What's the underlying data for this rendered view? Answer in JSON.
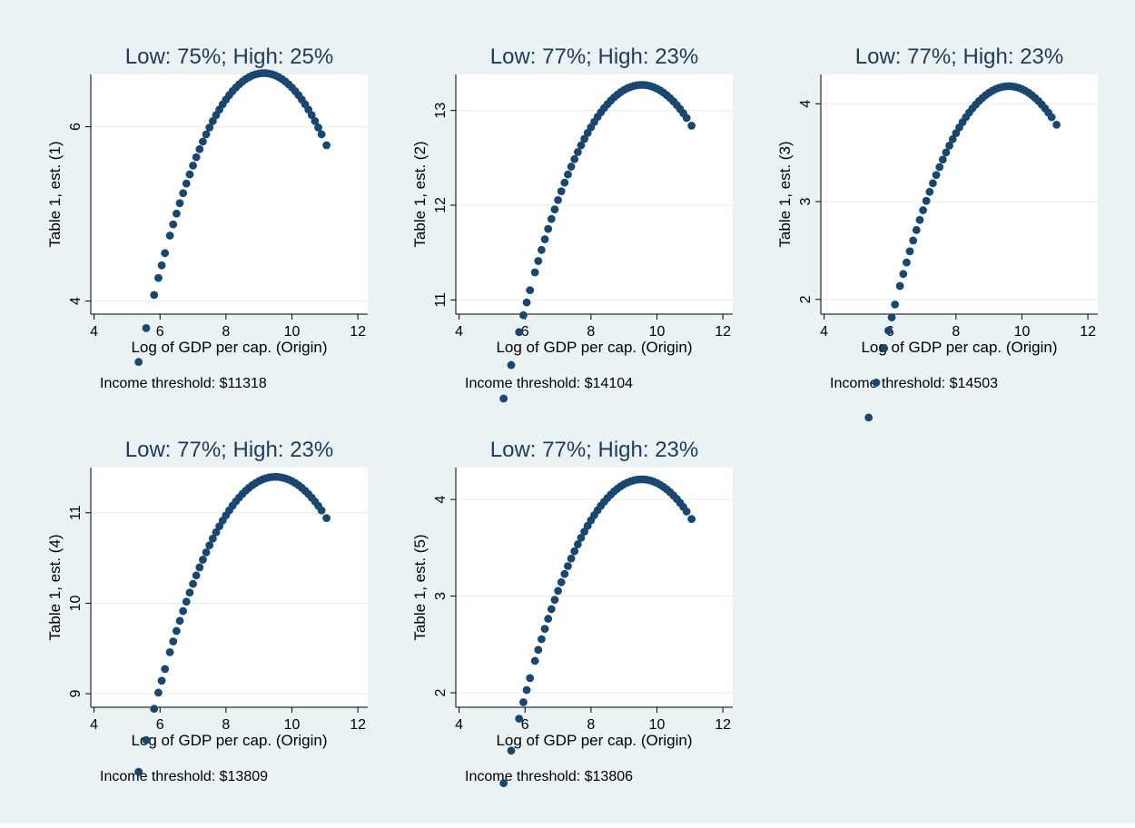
{
  "style": {
    "background": "#eaf2f3",
    "plot_background": "#ffffff",
    "marker_color": "#1a476f",
    "title_color": "#1e3a5f",
    "grid_color": "#e6ecee"
  },
  "chart_data": [
    {
      "type": "scatter",
      "title": "Low: 75%; High: 25%",
      "xlabel": "Log of GDP per cap. (Origin)",
      "ylabel": "Table 1, est. (1)",
      "note": "Income threshold: $11318",
      "xlim": [
        3.9,
        12.3
      ],
      "xticks": [
        4,
        6,
        8,
        10,
        12
      ],
      "ylim": [
        3.85,
        6.6
      ],
      "yticks": [
        4,
        6
      ],
      "grid": true,
      "curve": {
        "a": -0.2295,
        "b": 4.2,
        "c": -12.6
      },
      "x": [
        5.35,
        5.58,
        5.82,
        5.95,
        6.05,
        6.15,
        6.3,
        6.4,
        6.5,
        6.6,
        6.7,
        6.8,
        6.9,
        7.0,
        7.1,
        7.2,
        7.3,
        7.4,
        7.5,
        7.6,
        7.7,
        7.8,
        7.9,
        8.0,
        8.1,
        8.2,
        8.3,
        8.4,
        8.5,
        8.6,
        8.7,
        8.8,
        8.9,
        9.0,
        9.1,
        9.2,
        9.3,
        9.4,
        9.5,
        9.6,
        9.7,
        9.8,
        9.9,
        10.0,
        10.1,
        10.2,
        10.3,
        10.4,
        10.5,
        10.6,
        10.7,
        10.8,
        10.9,
        11.05
      ]
    },
    {
      "type": "scatter",
      "title": "Low: 77%; High: 23%",
      "xlabel": "Log of GDP per cap. (Origin)",
      "ylabel": "Table 1, est. (2)",
      "note": "Income threshold: $14104",
      "xlim": [
        3.9,
        12.3
      ],
      "xticks": [
        4,
        6,
        8,
        10,
        12
      ],
      "ylim": [
        10.85,
        13.38
      ],
      "yticks": [
        11,
        12,
        13
      ],
      "grid": true,
      "curve": {
        "a": -0.1887,
        "b": 3.6,
        "c": -3.9
      },
      "x": [
        5.35,
        5.58,
        5.82,
        5.95,
        6.05,
        6.15,
        6.3,
        6.4,
        6.5,
        6.6,
        6.7,
        6.8,
        6.9,
        7.0,
        7.1,
        7.2,
        7.3,
        7.4,
        7.5,
        7.6,
        7.7,
        7.8,
        7.9,
        8.0,
        8.1,
        8.2,
        8.3,
        8.4,
        8.5,
        8.6,
        8.7,
        8.8,
        8.9,
        9.0,
        9.1,
        9.2,
        9.3,
        9.4,
        9.5,
        9.6,
        9.7,
        9.8,
        9.9,
        10.0,
        10.1,
        10.2,
        10.3,
        10.4,
        10.5,
        10.6,
        10.7,
        10.8,
        10.9,
        11.05
      ]
    },
    {
      "type": "scatter",
      "title": "Low: 77%; High: 23%",
      "xlabel": "Log of GDP per cap. (Origin)",
      "ylabel": "Table 1, est. (3)",
      "note": "Income threshold: $14503",
      "xlim": [
        3.9,
        12.3
      ],
      "xticks": [
        4,
        6,
        8,
        10,
        12
      ],
      "ylim": [
        1.85,
        4.3
      ],
      "yticks": [
        2,
        3,
        4
      ],
      "grid": true,
      "curve": {
        "a": -0.1875,
        "b": 3.6,
        "c": -13.1
      },
      "x": [
        5.35,
        5.58,
        5.82,
        5.95,
        6.05,
        6.15,
        6.3,
        6.4,
        6.5,
        6.6,
        6.7,
        6.8,
        6.9,
        7.0,
        7.1,
        7.2,
        7.3,
        7.4,
        7.5,
        7.6,
        7.7,
        7.8,
        7.9,
        8.0,
        8.1,
        8.2,
        8.3,
        8.4,
        8.5,
        8.6,
        8.7,
        8.8,
        8.9,
        9.0,
        9.1,
        9.2,
        9.3,
        9.4,
        9.5,
        9.6,
        9.7,
        9.8,
        9.9,
        10.0,
        10.1,
        10.2,
        10.3,
        10.4,
        10.5,
        10.6,
        10.7,
        10.8,
        10.9,
        11.05
      ]
    },
    {
      "type": "scatter",
      "title": "Low: 77%; High: 23%",
      "xlabel": "Log of GDP per cap. (Origin)",
      "ylabel": "Table 1, est. (4)",
      "note": "Income threshold: $13809",
      "xlim": [
        3.9,
        12.3
      ],
      "xticks": [
        4,
        6,
        8,
        10,
        12
      ],
      "ylim": [
        8.85,
        11.5
      ],
      "yticks": [
        9,
        10,
        11
      ],
      "grid": true,
      "curve": {
        "a": -0.1895,
        "b": 3.6,
        "c": -5.7
      },
      "x": [
        5.35,
        5.58,
        5.82,
        5.95,
        6.05,
        6.15,
        6.3,
        6.4,
        6.5,
        6.6,
        6.7,
        6.8,
        6.9,
        7.0,
        7.1,
        7.2,
        7.3,
        7.4,
        7.5,
        7.6,
        7.7,
        7.8,
        7.9,
        8.0,
        8.1,
        8.2,
        8.3,
        8.4,
        8.5,
        8.6,
        8.7,
        8.8,
        8.9,
        9.0,
        9.1,
        9.2,
        9.3,
        9.4,
        9.5,
        9.6,
        9.7,
        9.8,
        9.9,
        10.0,
        10.1,
        10.2,
        10.3,
        10.4,
        10.5,
        10.6,
        10.7,
        10.8,
        10.9,
        11.05
      ]
    },
    {
      "type": "scatter",
      "title": "Low: 77%; High: 23%",
      "xlabel": "Log of GDP per cap. (Origin)",
      "ylabel": "Table 1, est. (5)",
      "note": "Income threshold: $13806",
      "xlim": [
        3.9,
        12.3
      ],
      "xticks": [
        4,
        6,
        8,
        10,
        12
      ],
      "ylim": [
        1.85,
        4.33
      ],
      "yticks": [
        2,
        3,
        4
      ],
      "grid": true,
      "curve": {
        "a": -0.1793,
        "b": 3.42,
        "c": -12.1
      },
      "x": [
        5.35,
        5.58,
        5.82,
        5.95,
        6.05,
        6.15,
        6.3,
        6.4,
        6.5,
        6.6,
        6.7,
        6.8,
        6.9,
        7.0,
        7.1,
        7.2,
        7.3,
        7.4,
        7.5,
        7.6,
        7.7,
        7.8,
        7.9,
        8.0,
        8.1,
        8.2,
        8.3,
        8.4,
        8.5,
        8.6,
        8.7,
        8.8,
        8.9,
        9.0,
        9.1,
        9.2,
        9.3,
        9.4,
        9.5,
        9.6,
        9.7,
        9.8,
        9.9,
        10.0,
        10.1,
        10.2,
        10.3,
        10.4,
        10.5,
        10.6,
        10.7,
        10.8,
        10.9,
        11.05
      ]
    }
  ]
}
